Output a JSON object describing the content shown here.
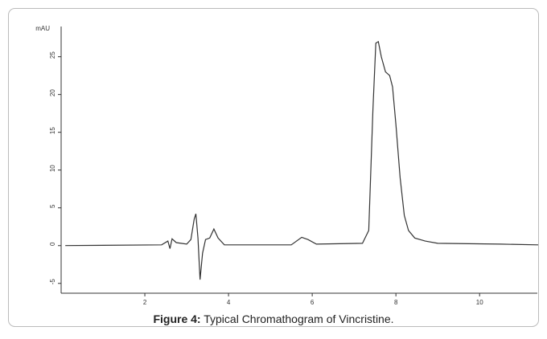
{
  "chart_data": {
    "type": "line",
    "y_label": "mAU",
    "caption_label": "Figure 4:",
    "caption_text": " Typical Chromathogram of Vincristine.",
    "x": [
      0.1,
      2.4,
      2.55,
      2.6,
      2.65,
      2.75,
      3.0,
      3.1,
      3.18,
      3.22,
      3.27,
      3.32,
      3.38,
      3.45,
      3.55,
      3.65,
      3.75,
      3.9,
      5.5,
      5.75,
      5.9,
      6.1,
      7.2,
      7.35,
      7.45,
      7.52,
      7.58,
      7.65,
      7.75,
      7.85,
      7.92,
      8.0,
      8.1,
      8.2,
      8.3,
      8.45,
      8.7,
      9.0,
      10.5,
      11.4
    ],
    "series": [
      {
        "name": "Vincristine",
        "color": "#333333",
        "values": [
          0,
          0.1,
          0.6,
          -0.4,
          0.9,
          0.4,
          0.2,
          0.8,
          3.5,
          4.2,
          1,
          -4.5,
          -1,
          0.8,
          1.0,
          2.2,
          1.0,
          0.1,
          0.1,
          1.1,
          0.8,
          0.2,
          0.3,
          2,
          18,
          26.8,
          27,
          25,
          23,
          22.5,
          21,
          16,
          9,
          4,
          2,
          1,
          0.6,
          0.3,
          0.2,
          0.1
        ]
      }
    ],
    "xlim": [
      0,
      11.38
    ],
    "ylim": [
      -6.3,
      29
    ],
    "xticks": [
      2,
      4,
      6,
      8,
      10
    ],
    "yticks": [
      -5,
      0,
      5,
      10,
      15,
      20,
      25
    ]
  }
}
